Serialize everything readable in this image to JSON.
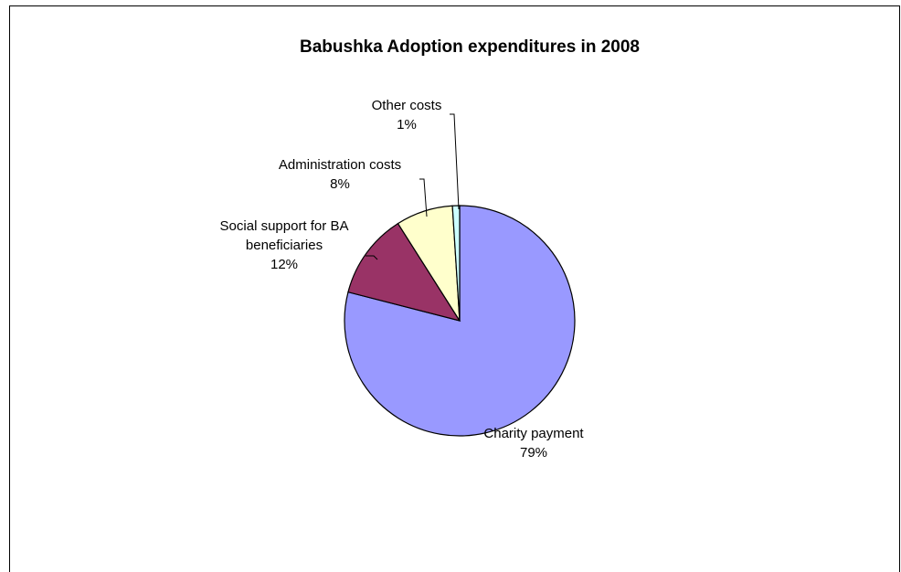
{
  "chart_data": {
    "type": "pie",
    "title": "Babushka Adoption expenditures in 2008",
    "slices": [
      {
        "label_lines": [
          "Charity payment"
        ],
        "percent_text": "79%",
        "value": 79,
        "color": "#9999FF"
      },
      {
        "label_lines": [
          "Social support for BA",
          "beneficiaries"
        ],
        "percent_text": "12%",
        "value": 12,
        "color": "#993366"
      },
      {
        "label_lines": [
          "Administration costs"
        ],
        "percent_text": "8%",
        "value": 8,
        "color": "#FFFFCC"
      },
      {
        "label_lines": [
          "Other costs"
        ],
        "percent_text": "1%",
        "value": 1,
        "color": "#CCFFFF"
      }
    ],
    "start_angle_deg": 0,
    "direction": "clockwise",
    "legend": "none"
  }
}
